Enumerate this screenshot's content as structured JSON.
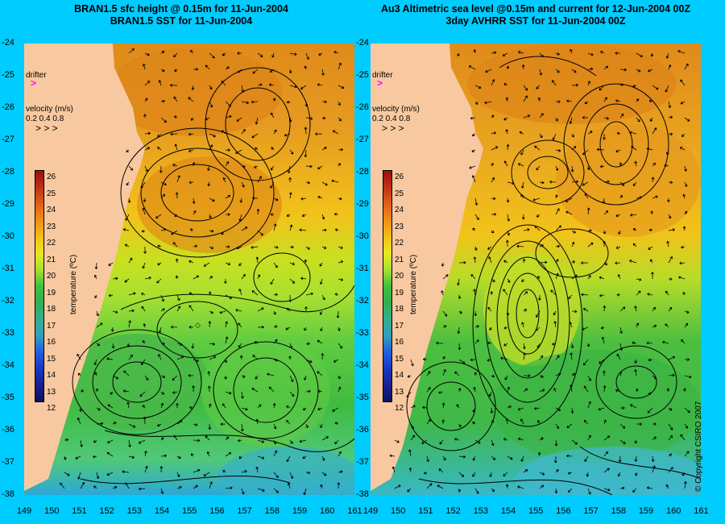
{
  "titles": {
    "left_line1": "BRAN1.5 sfc height @ 0.15m for 11-Jun-2004",
    "left_line2": "BRAN1.5 SST for 11-Jun-2004",
    "right_line1": "Au3 Altimetric sea level  @0.15m and current for 12-Jun-2004 00Z",
    "right_line2": "3day AVHRR SST for 11-Jun-2004 00Z"
  },
  "axes": {
    "y_ticks": [
      "-24",
      "-25",
      "-26",
      "-27",
      "-28",
      "-29",
      "-30",
      "-31",
      "-32",
      "-33",
      "-34",
      "-35",
      "-36",
      "-37",
      "-38"
    ],
    "x_ticks": [
      "149",
      "150",
      "151",
      "152",
      "153",
      "154",
      "155",
      "156",
      "157",
      "158",
      "159",
      "160",
      "161"
    ],
    "lat_range": [
      -24,
      -38
    ],
    "lon_range": [
      149,
      161
    ]
  },
  "legend": {
    "drifter_label": "drifter",
    "drifter_symbol": ">",
    "drifter_color": "#ff00ff",
    "velocity_label": "velocity (m/s)",
    "velocity_values": "0.2 0.4 0.8",
    "velocity_arrows": ">  >  >"
  },
  "colorbar": {
    "label": "temperature (ºC)",
    "ticks": [
      "26",
      "25",
      "24",
      "23",
      "22",
      "21",
      "20",
      "19",
      "18",
      "17",
      "16",
      "15",
      "14",
      "13",
      "12"
    ],
    "range": [
      12,
      26.5
    ]
  },
  "colors": {
    "background": "#00ccff",
    "land": "#f8c9a0",
    "contour": "#000000"
  },
  "copyright": "© Copyright CSIRO 2007"
}
